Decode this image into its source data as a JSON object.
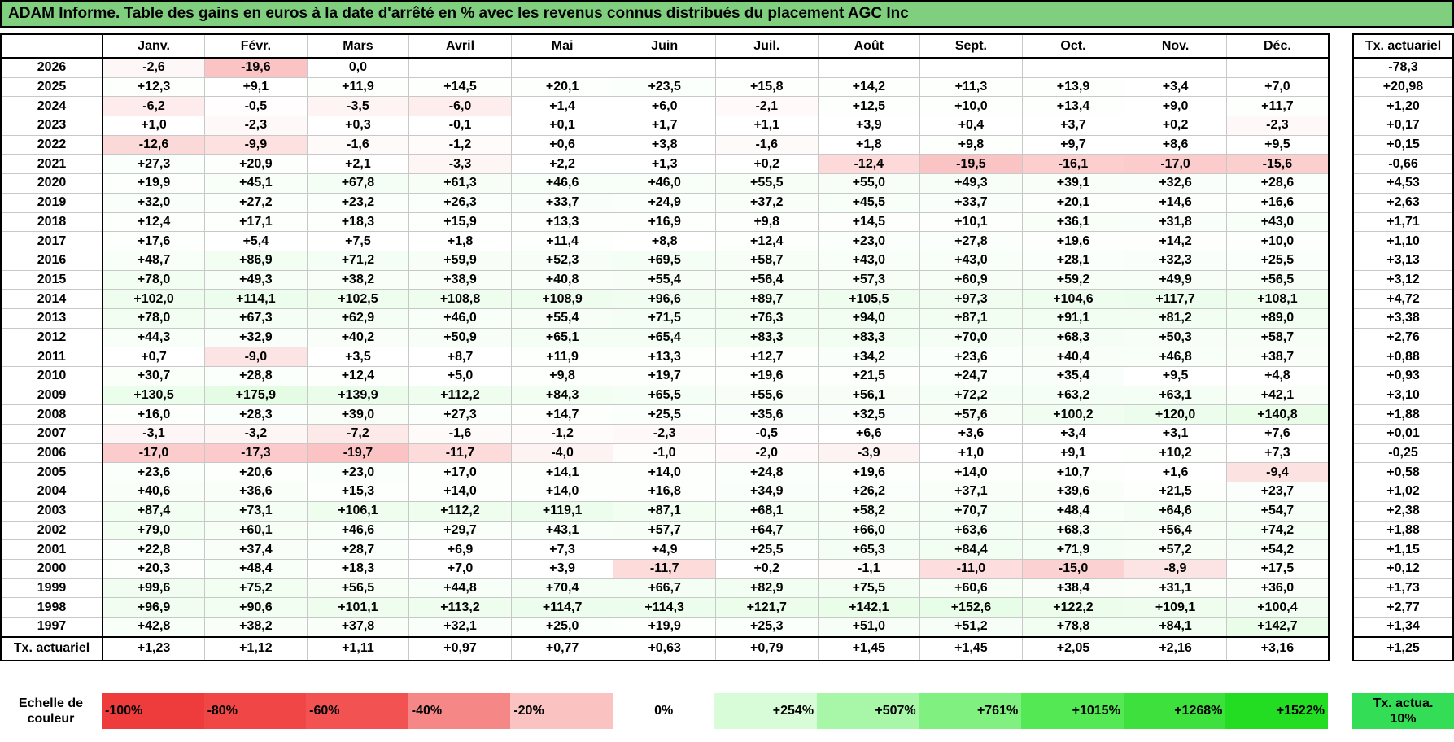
{
  "title": "ADAM Informe. Table des gains en euros à la date d'arrêté en % avec les revenus connus distribués du placement AGC Inc",
  "table": {
    "months": [
      "Janv.",
      "Févr.",
      "Mars",
      "Avril",
      "Mai",
      "Juin",
      "Juil.",
      "Août",
      "Sept.",
      "Oct.",
      "Nov.",
      "Déc."
    ],
    "total_header": "Tx. actuariel",
    "rows": [
      {
        "year": "2026",
        "values": [
          "-2,6",
          "-19,6",
          "0,0",
          null,
          null,
          null,
          null,
          null,
          null,
          null,
          null,
          null
        ],
        "total": "-78,3"
      },
      {
        "year": "2025",
        "values": [
          "+12,3",
          "+9,1",
          "+11,9",
          "+14,5",
          "+20,1",
          "+23,5",
          "+15,8",
          "+14,2",
          "+11,3",
          "+13,9",
          "+3,4",
          "+7,0"
        ],
        "total": "+20,98"
      },
      {
        "year": "2024",
        "values": [
          "-6,2",
          "-0,5",
          "-3,5",
          "-6,0",
          "+1,4",
          "+6,0",
          "-2,1",
          "+12,5",
          "+10,0",
          "+13,4",
          "+9,0",
          "+11,7"
        ],
        "total": "+1,20"
      },
      {
        "year": "2023",
        "values": [
          "+1,0",
          "-2,3",
          "+0,3",
          "-0,1",
          "+0,1",
          "+1,7",
          "+1,1",
          "+3,9",
          "+0,4",
          "+3,7",
          "+0,2",
          "-2,3"
        ],
        "total": "+0,17"
      },
      {
        "year": "2022",
        "values": [
          "-12,6",
          "-9,9",
          "-1,6",
          "-1,2",
          "+0,6",
          "+3,8",
          "-1,6",
          "+1,8",
          "+9,8",
          "+9,7",
          "+8,6",
          "+9,5"
        ],
        "total": "+0,15"
      },
      {
        "year": "2021",
        "values": [
          "+27,3",
          "+20,9",
          "+2,1",
          "-3,3",
          "+2,2",
          "+1,3",
          "+0,2",
          "-12,4",
          "-19,5",
          "-16,1",
          "-17,0",
          "-15,6"
        ],
        "total": "-0,66"
      },
      {
        "year": "2020",
        "values": [
          "+19,9",
          "+45,1",
          "+67,8",
          "+61,3",
          "+46,6",
          "+46,0",
          "+55,5",
          "+55,0",
          "+49,3",
          "+39,1",
          "+32,6",
          "+28,6"
        ],
        "total": "+4,53"
      },
      {
        "year": "2019",
        "values": [
          "+32,0",
          "+27,2",
          "+23,2",
          "+26,3",
          "+33,7",
          "+24,9",
          "+37,2",
          "+45,5",
          "+33,7",
          "+20,1",
          "+14,6",
          "+16,6"
        ],
        "total": "+2,63"
      },
      {
        "year": "2018",
        "values": [
          "+12,4",
          "+17,1",
          "+18,3",
          "+15,9",
          "+13,3",
          "+16,9",
          "+9,8",
          "+14,5",
          "+10,1",
          "+36,1",
          "+31,8",
          "+43,0"
        ],
        "total": "+1,71"
      },
      {
        "year": "2017",
        "values": [
          "+17,6",
          "+5,4",
          "+7,5",
          "+1,8",
          "+11,4",
          "+8,8",
          "+12,4",
          "+23,0",
          "+27,8",
          "+19,6",
          "+14,2",
          "+10,0"
        ],
        "total": "+1,10"
      },
      {
        "year": "2016",
        "values": [
          "+48,7",
          "+86,9",
          "+71,2",
          "+59,9",
          "+52,3",
          "+69,5",
          "+58,7",
          "+43,0",
          "+43,0",
          "+28,1",
          "+32,3",
          "+25,5"
        ],
        "total": "+3,13"
      },
      {
        "year": "2015",
        "values": [
          "+78,0",
          "+49,3",
          "+38,2",
          "+38,9",
          "+40,8",
          "+55,4",
          "+56,4",
          "+57,3",
          "+60,9",
          "+59,2",
          "+49,9",
          "+56,5"
        ],
        "total": "+3,12"
      },
      {
        "year": "2014",
        "values": [
          "+102,0",
          "+114,1",
          "+102,5",
          "+108,8",
          "+108,9",
          "+96,6",
          "+89,7",
          "+105,5",
          "+97,3",
          "+104,6",
          "+117,7",
          "+108,1"
        ],
        "total": "+4,72"
      },
      {
        "year": "2013",
        "values": [
          "+78,0",
          "+67,3",
          "+62,9",
          "+46,0",
          "+55,4",
          "+71,5",
          "+76,3",
          "+94,0",
          "+87,1",
          "+91,1",
          "+81,2",
          "+89,0"
        ],
        "total": "+3,38"
      },
      {
        "year": "2012",
        "values": [
          "+44,3",
          "+32,9",
          "+40,2",
          "+50,9",
          "+65,1",
          "+65,4",
          "+83,3",
          "+83,3",
          "+70,0",
          "+68,3",
          "+50,3",
          "+58,7"
        ],
        "total": "+2,76"
      },
      {
        "year": "2011",
        "values": [
          "+0,7",
          "-9,0",
          "+3,5",
          "+8,7",
          "+11,9",
          "+13,3",
          "+12,7",
          "+34,2",
          "+23,6",
          "+40,4",
          "+46,8",
          "+38,7"
        ],
        "total": "+0,88"
      },
      {
        "year": "2010",
        "values": [
          "+30,7",
          "+28,8",
          "+12,4",
          "+5,0",
          "+9,8",
          "+19,7",
          "+19,6",
          "+21,5",
          "+24,7",
          "+35,4",
          "+9,5",
          "+4,8"
        ],
        "total": "+0,93"
      },
      {
        "year": "2009",
        "values": [
          "+130,5",
          "+175,9",
          "+139,9",
          "+112,2",
          "+84,3",
          "+65,5",
          "+55,6",
          "+56,1",
          "+72,2",
          "+63,2",
          "+63,1",
          "+42,1"
        ],
        "total": "+3,10"
      },
      {
        "year": "2008",
        "values": [
          "+16,0",
          "+28,3",
          "+39,0",
          "+27,3",
          "+14,7",
          "+25,5",
          "+35,6",
          "+32,5",
          "+57,6",
          "+100,2",
          "+120,0",
          "+140,8"
        ],
        "total": "+1,88"
      },
      {
        "year": "2007",
        "values": [
          "-3,1",
          "-3,2",
          "-7,2",
          "-1,6",
          "-1,2",
          "-2,3",
          "-0,5",
          "+6,6",
          "+3,6",
          "+3,4",
          "+3,1",
          "+7,6"
        ],
        "total": "+0,01"
      },
      {
        "year": "2006",
        "values": [
          "-17,0",
          "-17,3",
          "-19,7",
          "-11,7",
          "-4,0",
          "-1,0",
          "-2,0",
          "-3,9",
          "+1,0",
          "+9,1",
          "+10,2",
          "+7,3"
        ],
        "total": "-0,25"
      },
      {
        "year": "2005",
        "values": [
          "+23,6",
          "+20,6",
          "+23,0",
          "+17,0",
          "+14,1",
          "+14,0",
          "+24,8",
          "+19,6",
          "+14,0",
          "+10,7",
          "+1,6",
          "-9,4"
        ],
        "total": "+0,58"
      },
      {
        "year": "2004",
        "values": [
          "+40,6",
          "+36,6",
          "+15,3",
          "+14,0",
          "+14,0",
          "+16,8",
          "+34,9",
          "+26,2",
          "+37,1",
          "+39,6",
          "+21,5",
          "+23,7"
        ],
        "total": "+1,02"
      },
      {
        "year": "2003",
        "values": [
          "+87,4",
          "+73,1",
          "+106,1",
          "+112,2",
          "+119,1",
          "+87,1",
          "+68,1",
          "+58,2",
          "+70,7",
          "+48,4",
          "+64,6",
          "+54,7"
        ],
        "total": "+2,38"
      },
      {
        "year": "2002",
        "values": [
          "+79,0",
          "+60,1",
          "+46,6",
          "+29,7",
          "+43,1",
          "+57,7",
          "+64,7",
          "+66,0",
          "+63,6",
          "+68,3",
          "+56,4",
          "+74,2"
        ],
        "total": "+1,88"
      },
      {
        "year": "2001",
        "values": [
          "+22,8",
          "+37,4",
          "+28,7",
          "+6,9",
          "+7,3",
          "+4,9",
          "+25,5",
          "+65,3",
          "+84,4",
          "+71,9",
          "+57,2",
          "+54,2"
        ],
        "total": "+1,15"
      },
      {
        "year": "2000",
        "values": [
          "+20,3",
          "+48,4",
          "+18,3",
          "+7,0",
          "+3,9",
          "-11,7",
          "+0,2",
          "-1,1",
          "-11,0",
          "-15,0",
          "-8,9",
          "+17,5"
        ],
        "total": "+0,12"
      },
      {
        "year": "1999",
        "values": [
          "+99,6",
          "+75,2",
          "+56,5",
          "+44,8",
          "+70,4",
          "+66,7",
          "+82,9",
          "+75,5",
          "+60,6",
          "+38,4",
          "+31,1",
          "+36,0"
        ],
        "total": "+1,73"
      },
      {
        "year": "1998",
        "values": [
          "+96,9",
          "+90,6",
          "+101,1",
          "+113,2",
          "+114,7",
          "+114,3",
          "+121,7",
          "+142,1",
          "+152,6",
          "+122,2",
          "+109,1",
          "+100,4"
        ],
        "total": "+2,77"
      },
      {
        "year": "1997",
        "values": [
          "+42,8",
          "+38,2",
          "+37,8",
          "+32,1",
          "+25,0",
          "+19,9",
          "+25,3",
          "+51,0",
          "+51,2",
          "+78,8",
          "+84,1",
          "+142,7"
        ],
        "total": "+1,34"
      }
    ],
    "footer": {
      "label": "Tx. actuariel",
      "values": [
        "+1,23",
        "+1,12",
        "+1,11",
        "+0,97",
        "+0,77",
        "+0,63",
        "+0,79",
        "+1,45",
        "+1,45",
        "+2,05",
        "+2,16",
        "+3,16"
      ],
      "total": "+1,25"
    }
  },
  "legend": {
    "label": "Echelle de couleur",
    "items": [
      {
        "label": "-100%",
        "color": "#ee3b3b"
      },
      {
        "label": "-80%",
        "color": "#f04646"
      },
      {
        "label": "-60%",
        "color": "#f25252"
      },
      {
        "label": "-40%",
        "color": "#f58787"
      },
      {
        "label": "-20%",
        "color": "#fbc2c2"
      },
      {
        "label": "0%",
        "color": "#ffffff"
      },
      {
        "label": "+254%",
        "color": "#d8fbd8"
      },
      {
        "label": "+507%",
        "color": "#a8f7a8"
      },
      {
        "label": "+761%",
        "color": "#80f080"
      },
      {
        "label": "+1015%",
        "color": "#55e855"
      },
      {
        "label": "+1268%",
        "color": "#3ee03e"
      },
      {
        "label": "+1522%",
        "color": "#22dd22"
      }
    ],
    "total": {
      "label": "Tx. actua. 10%",
      "color": "#33dd55"
    }
  }
}
